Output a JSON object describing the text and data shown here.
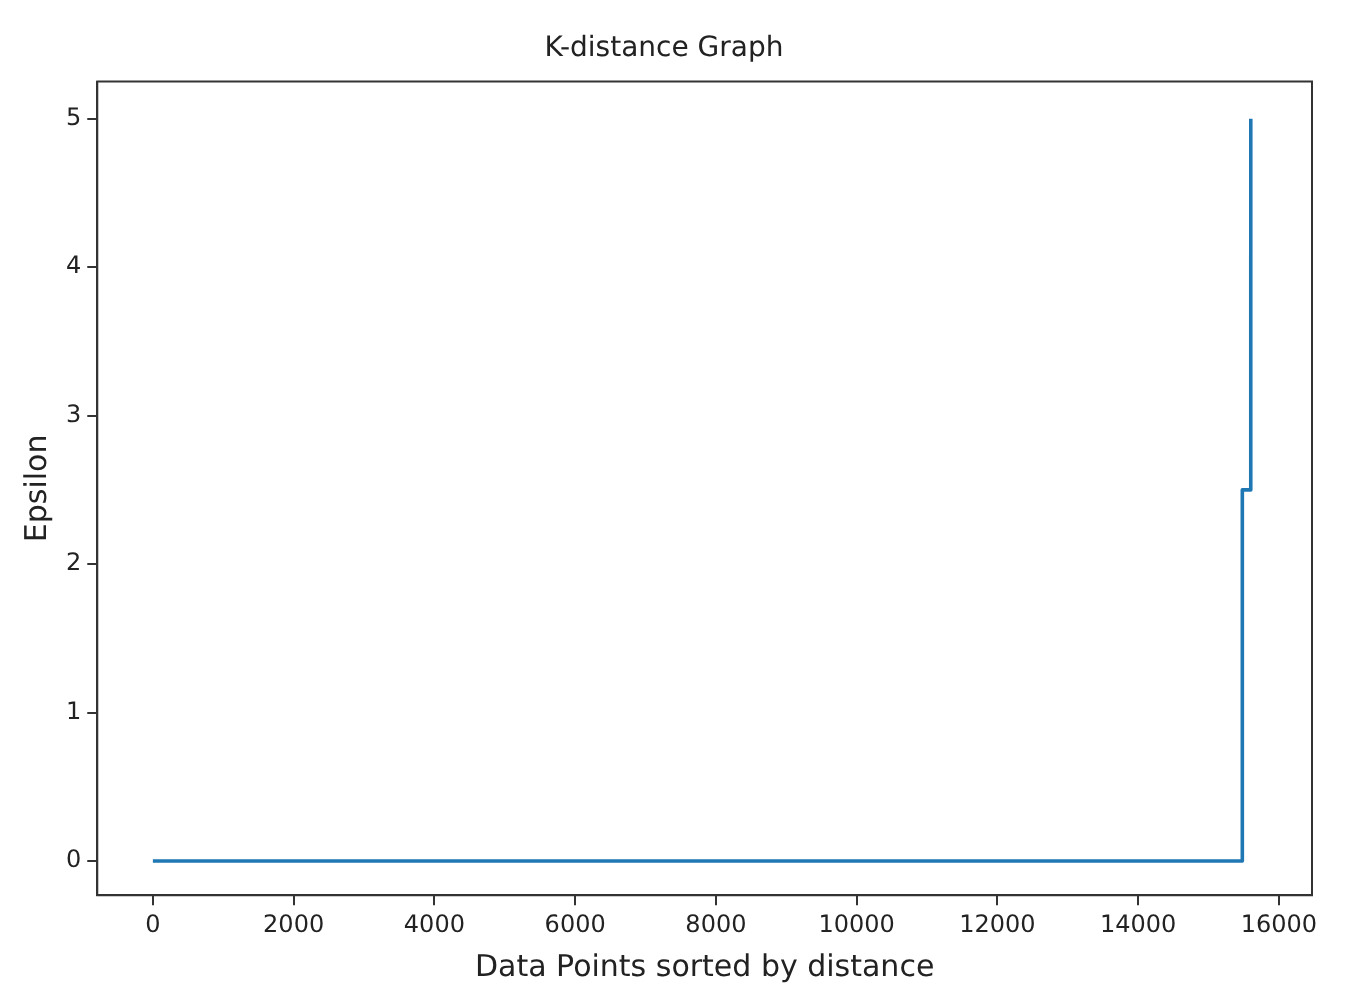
{
  "chart_data": {
    "type": "line",
    "title": "K-distance Graph",
    "xlabel": "Data Points sorted by distance",
    "ylabel": "Epsilon",
    "x": [
      0,
      15480,
      15480,
      15590,
      15600
    ],
    "series": [
      {
        "color": "#1f77b4",
        "values": [
          0,
          0,
          2.5,
          2.5,
          5
        ]
      }
    ],
    "xlim": [
      -790,
      16470
    ],
    "xticks": [
      0,
      2000,
      4000,
      6000,
      8000,
      10000,
      12000,
      14000,
      16000
    ],
    "ylim": [
      -0.23,
      5.25
    ],
    "yticks": [
      0,
      1,
      2,
      3,
      4,
      5
    ],
    "grid": false,
    "legend": false,
    "marker": "none",
    "line_style": "solid"
  }
}
